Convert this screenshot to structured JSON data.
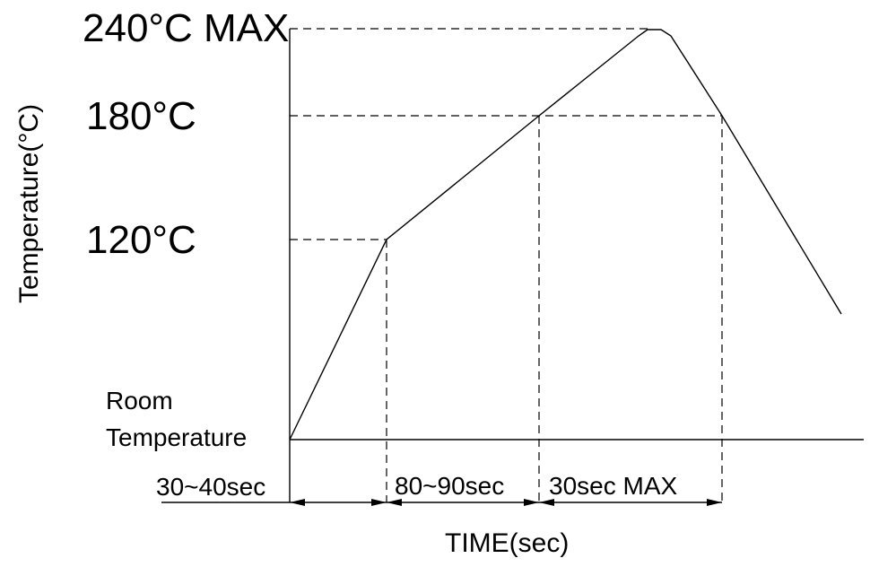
{
  "diagram": {
    "y_axis_label": "Temperature(°C)",
    "x_axis_label": "TIME(sec)",
    "levels": {
      "max": "240°C MAX",
      "t180": "180°C",
      "t120": "120°C",
      "room_line1": "Room",
      "room_line2": "Temperature"
    },
    "intervals": {
      "first": "30~40sec",
      "second": "80~90sec",
      "third": "30sec MAX"
    }
  }
}
